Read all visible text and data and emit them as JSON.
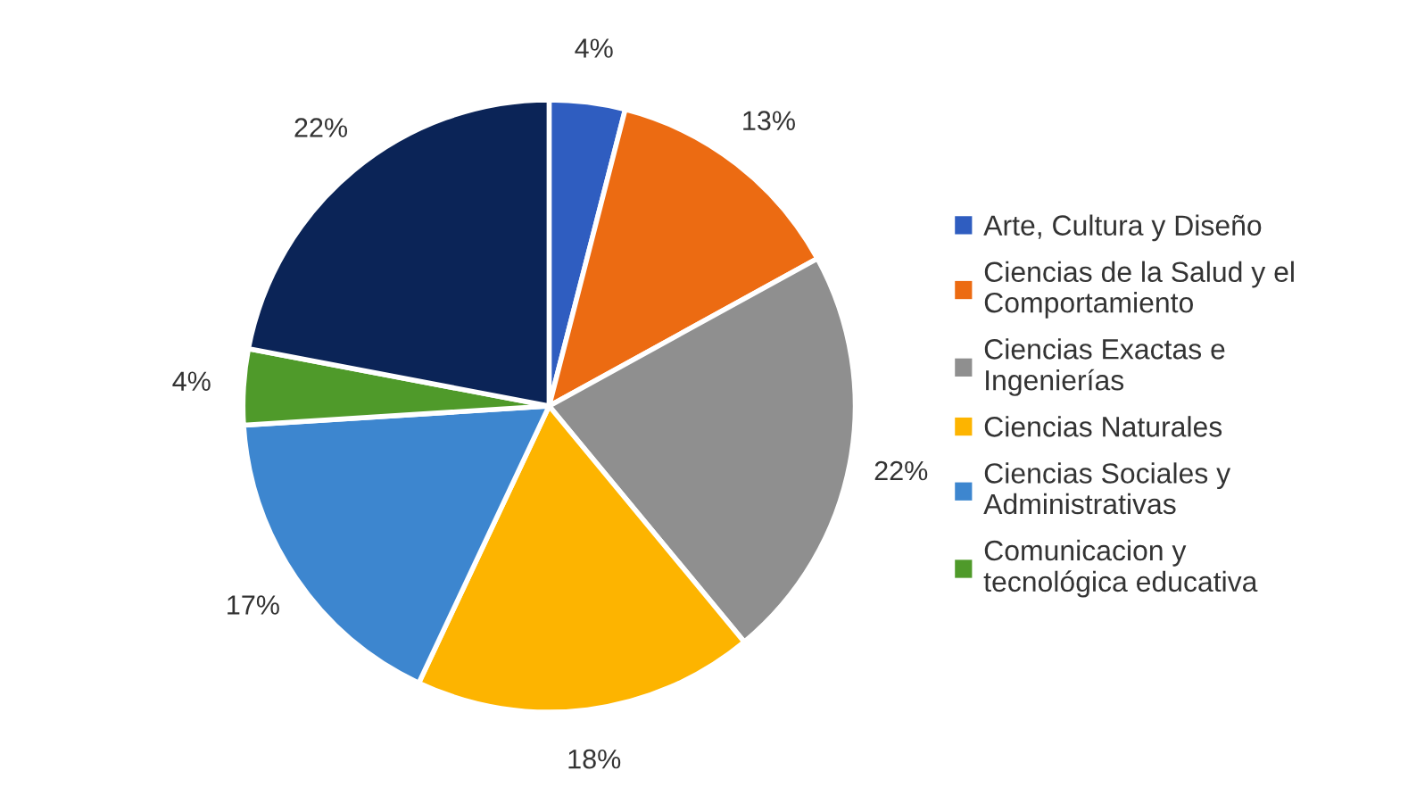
{
  "chart_data": {
    "type": "pie",
    "categories": [
      "Arte, Cultura y Diseño",
      "Ciencias de la Salud y el\nComportamiento",
      "Ciencias Exactas e\nIngenierías",
      "Ciencias Naturales",
      "Ciencias Sociales y\nAdministrativas",
      "Comunicacion y\ntecnológica educativa",
      null
    ],
    "values": [
      4,
      13,
      22,
      18,
      17,
      4,
      22
    ],
    "value_labels": [
      "4%",
      "13%",
      "22%",
      "18%",
      "17%",
      "4%",
      "22%"
    ],
    "colors": [
      "#2f5dc0",
      "#ec6b12",
      "#8f8f8f",
      "#fdb400",
      "#3d86cf",
      "#4f9a2a",
      "#0b2457"
    ],
    "legend": "right"
  }
}
